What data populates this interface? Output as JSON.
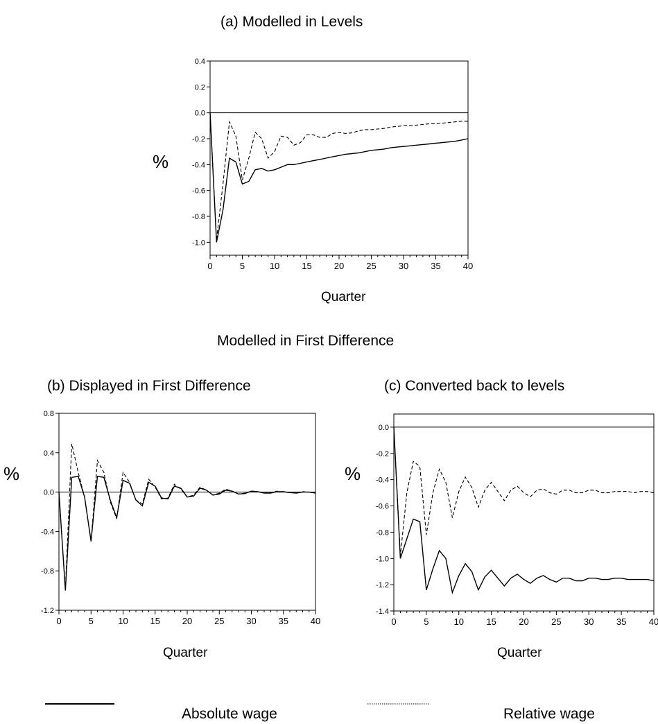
{
  "section_title": "Modelled in First Difference",
  "legend": {
    "absolute_label": "Absolute wage",
    "relative_label": "Relative wage",
    "absolute_style": "solid",
    "relative_style": "dashed"
  },
  "chart_data": [
    {
      "id": "a",
      "type": "line",
      "title": "(a) Modelled in Levels",
      "ylabel": "%",
      "xlabel": "Quarter",
      "xlim": [
        0,
        40
      ],
      "ylim": [
        -1.1,
        0.4
      ],
      "xticks": [
        0,
        5,
        10,
        15,
        20,
        25,
        30,
        35,
        40
      ],
      "yticks": [
        0.4,
        0.2,
        0.0,
        -0.2,
        -0.4,
        -0.6,
        -0.8,
        -1.0
      ],
      "ytick_labels": [
        "0.4",
        "0.2",
        "0.0",
        "-0.2",
        "-0.4",
        "-0.6",
        "-0.8",
        "-1.0"
      ],
      "zero_line": true,
      "series": [
        {
          "name": "Absolute wage",
          "style": "solid",
          "x": [
            0,
            1,
            2,
            3,
            4,
            5,
            6,
            7,
            8,
            9,
            10,
            11,
            12,
            13,
            14,
            15,
            16,
            17,
            18,
            19,
            20,
            21,
            22,
            23,
            24,
            25,
            26,
            27,
            28,
            29,
            30,
            31,
            32,
            33,
            34,
            35,
            36,
            37,
            38,
            39,
            40
          ],
          "values": [
            0.0,
            -1.0,
            -0.75,
            -0.35,
            -0.38,
            -0.55,
            -0.53,
            -0.44,
            -0.43,
            -0.45,
            -0.44,
            -0.42,
            -0.4,
            -0.4,
            -0.39,
            -0.38,
            -0.37,
            -0.36,
            -0.35,
            -0.34,
            -0.33,
            -0.32,
            -0.315,
            -0.31,
            -0.3,
            -0.29,
            -0.285,
            -0.28,
            -0.27,
            -0.265,
            -0.26,
            -0.255,
            -0.25,
            -0.245,
            -0.24,
            -0.235,
            -0.23,
            -0.225,
            -0.22,
            -0.21,
            -0.2
          ]
        },
        {
          "name": "Relative wage",
          "style": "dashed",
          "x": [
            0,
            1,
            2,
            3,
            4,
            5,
            6,
            7,
            8,
            9,
            10,
            11,
            12,
            13,
            14,
            15,
            16,
            17,
            18,
            19,
            20,
            21,
            22,
            23,
            24,
            25,
            26,
            27,
            28,
            29,
            30,
            31,
            32,
            33,
            34,
            35,
            36,
            37,
            38,
            39,
            40
          ],
          "values": [
            0.0,
            -0.98,
            -0.55,
            -0.07,
            -0.18,
            -0.52,
            -0.35,
            -0.15,
            -0.2,
            -0.35,
            -0.3,
            -0.18,
            -0.19,
            -0.25,
            -0.23,
            -0.17,
            -0.17,
            -0.19,
            -0.19,
            -0.16,
            -0.15,
            -0.16,
            -0.155,
            -0.14,
            -0.13,
            -0.13,
            -0.125,
            -0.12,
            -0.11,
            -0.105,
            -0.1,
            -0.1,
            -0.095,
            -0.09,
            -0.085,
            -0.085,
            -0.08,
            -0.075,
            -0.07,
            -0.065,
            -0.065
          ]
        }
      ]
    },
    {
      "id": "b",
      "type": "line",
      "title": "(b) Displayed in First Difference",
      "ylabel": "%",
      "xlabel": "Quarter",
      "xlim": [
        0,
        40
      ],
      "ylim": [
        -1.2,
        0.8
      ],
      "xticks": [
        0,
        5,
        10,
        15,
        20,
        25,
        30,
        35,
        40
      ],
      "yticks": [
        0.8,
        0.4,
        0.0,
        -0.4,
        -0.8,
        -1.2
      ],
      "ytick_labels": [
        "0.8",
        "0.4",
        "0.0",
        "-0.4",
        "-0.8",
        "-1.2"
      ],
      "zero_line": true,
      "series": [
        {
          "name": "Absolute wage",
          "style": "solid",
          "x": [
            0,
            1,
            2,
            3,
            4,
            5,
            6,
            7,
            8,
            9,
            10,
            11,
            12,
            13,
            14,
            15,
            16,
            17,
            18,
            19,
            20,
            21,
            22,
            23,
            24,
            25,
            26,
            27,
            28,
            29,
            30,
            31,
            32,
            33,
            34,
            35,
            36,
            37,
            38,
            39,
            40
          ],
          "values": [
            0.0,
            -1.0,
            0.15,
            0.16,
            -0.05,
            -0.5,
            0.16,
            0.15,
            -0.08,
            -0.26,
            0.12,
            0.09,
            -0.08,
            -0.14,
            0.1,
            0.06,
            -0.06,
            -0.07,
            0.06,
            0.04,
            -0.05,
            -0.04,
            0.04,
            0.02,
            -0.03,
            -0.02,
            0.02,
            0.01,
            -0.02,
            -0.015,
            0.01,
            0.005,
            -0.01,
            -0.01,
            0.005,
            0.005,
            -0.005,
            -0.01,
            0.0,
            0.0,
            -0.01
          ]
        },
        {
          "name": "Relative wage",
          "style": "dashed",
          "x": [
            0,
            1,
            2,
            3,
            4,
            5,
            6,
            7,
            8,
            9,
            10,
            11,
            12,
            13,
            14,
            15,
            16,
            17,
            18,
            19,
            20,
            21,
            22,
            23,
            24,
            25,
            26,
            27,
            28,
            29,
            30,
            31,
            32,
            33,
            34,
            35,
            36,
            37,
            38,
            39,
            40
          ],
          "values": [
            0.0,
            -0.98,
            0.49,
            0.2,
            -0.05,
            -0.5,
            0.32,
            0.2,
            -0.1,
            -0.27,
            0.2,
            0.1,
            -0.08,
            -0.12,
            0.13,
            0.05,
            -0.07,
            -0.06,
            0.08,
            0.03,
            -0.05,
            -0.03,
            0.05,
            0.02,
            -0.03,
            -0.01,
            0.03,
            0.01,
            -0.02,
            -0.01,
            0.01,
            0.005,
            -0.01,
            -0.005,
            0.01,
            0.0,
            -0.005,
            -0.005,
            0.005,
            0.0,
            -0.005
          ]
        }
      ]
    },
    {
      "id": "c",
      "type": "line",
      "title": "(c) Converted back to levels",
      "ylabel": "%",
      "xlabel": "Quarter",
      "xlim": [
        0,
        40
      ],
      "ylim": [
        -1.4,
        0.1
      ],
      "xticks": [
        0,
        5,
        10,
        15,
        20,
        25,
        30,
        35,
        40
      ],
      "yticks": [
        0.0,
        -0.2,
        -0.4,
        -0.6,
        -0.8,
        -1.0,
        -1.2,
        -1.4
      ],
      "ytick_labels": [
        "0.0",
        "-0.2",
        "-0.4",
        "-0.6",
        "-0.8",
        "-1.0",
        "-1.2",
        "-1.4"
      ],
      "zero_line": true,
      "series": [
        {
          "name": "Absolute wage",
          "style": "solid",
          "x": [
            0,
            1,
            2,
            3,
            4,
            5,
            6,
            7,
            8,
            9,
            10,
            11,
            12,
            13,
            14,
            15,
            16,
            17,
            18,
            19,
            20,
            21,
            22,
            23,
            24,
            25,
            26,
            27,
            28,
            29,
            30,
            31,
            32,
            33,
            34,
            35,
            36,
            37,
            38,
            39,
            40
          ],
          "values": [
            0.0,
            -1.0,
            -0.85,
            -0.7,
            -0.72,
            -1.24,
            -1.08,
            -0.94,
            -1.0,
            -1.26,
            -1.13,
            -1.04,
            -1.1,
            -1.24,
            -1.14,
            -1.09,
            -1.15,
            -1.21,
            -1.15,
            -1.12,
            -1.16,
            -1.19,
            -1.15,
            -1.13,
            -1.16,
            -1.18,
            -1.15,
            -1.15,
            -1.17,
            -1.17,
            -1.15,
            -1.15,
            -1.16,
            -1.16,
            -1.15,
            -1.15,
            -1.16,
            -1.16,
            -1.16,
            -1.16,
            -1.17
          ]
        },
        {
          "name": "Relative wage",
          "style": "dashed",
          "x": [
            0,
            1,
            2,
            3,
            4,
            5,
            6,
            7,
            8,
            9,
            10,
            11,
            12,
            13,
            14,
            15,
            16,
            17,
            18,
            19,
            20,
            21,
            22,
            23,
            24,
            25,
            26,
            27,
            28,
            29,
            30,
            31,
            32,
            33,
            34,
            35,
            36,
            37,
            38,
            39,
            40
          ],
          "values": [
            0.0,
            -0.98,
            -0.5,
            -0.26,
            -0.3,
            -0.82,
            -0.5,
            -0.32,
            -0.42,
            -0.69,
            -0.49,
            -0.38,
            -0.46,
            -0.61,
            -0.48,
            -0.42,
            -0.49,
            -0.56,
            -0.48,
            -0.45,
            -0.5,
            -0.53,
            -0.48,
            -0.47,
            -0.5,
            -0.51,
            -0.48,
            -0.48,
            -0.5,
            -0.5,
            -0.48,
            -0.48,
            -0.5,
            -0.5,
            -0.49,
            -0.49,
            -0.49,
            -0.5,
            -0.49,
            -0.49,
            -0.5
          ]
        }
      ]
    }
  ]
}
